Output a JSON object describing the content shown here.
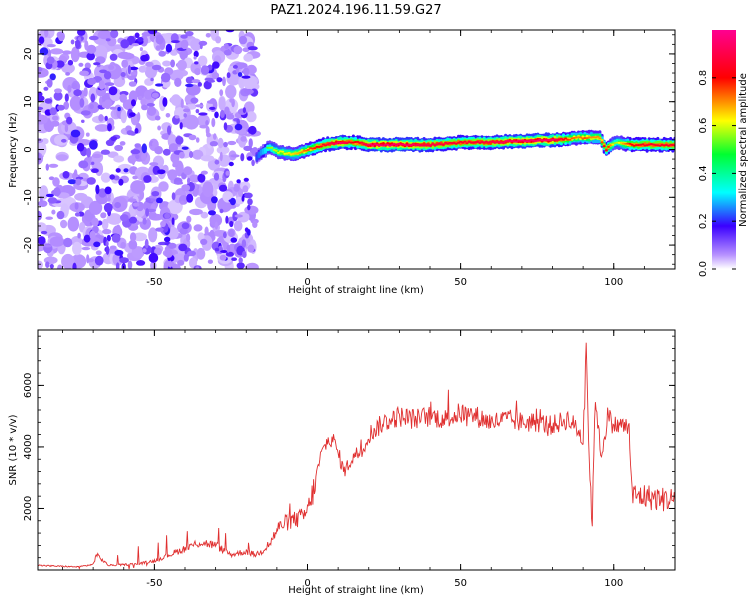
{
  "title": "PAZ1.2024.196.11.59.G27",
  "chart_data": [
    {
      "type": "heatmap",
      "xlabel": "Height of straight line (km)",
      "ylabel": "Frequency (Hz)",
      "xlim": [
        -88,
        120
      ],
      "ylim": [
        -25,
        25
      ],
      "x_ticks": [
        -50,
        0,
        50,
        100
      ],
      "y_ticks": [
        -20,
        -10,
        0,
        10,
        20
      ],
      "colorbar": {
        "label": "Normalized spectral amplitude",
        "range": [
          0.0,
          1.0
        ],
        "ticks": [
          0.0,
          0.2,
          0.4,
          0.6,
          0.8
        ],
        "tick_labels": [
          "0.0",
          "0.2",
          "0.4",
          "0.6",
          "0.8"
        ],
        "colors": [
          "#ffffff",
          "#a070ff",
          "#0000ff",
          "#00ffff",
          "#00ff00",
          "#ffff00",
          "#ff0000",
          "#ff00a0"
        ]
      },
      "noise_region_x": [
        -88,
        -17
      ],
      "ridge": {
        "x": [
          -17,
          -13,
          -10,
          -5,
          0,
          5,
          10,
          15,
          20,
          30,
          40,
          50,
          60,
          70,
          80,
          85,
          88,
          90,
          92,
          95,
          97,
          100,
          105,
          110,
          120
        ],
        "frequency_hz": [
          -1.5,
          0.5,
          -0.5,
          -1.0,
          0.0,
          1.0,
          1.5,
          1.5,
          1.0,
          1.0,
          1.0,
          1.5,
          1.5,
          1.8,
          2.0,
          2.2,
          2.5,
          2.5,
          2.5,
          2.5,
          0.0,
          1.5,
          1.0,
          1.0,
          1.0
        ],
        "amplitude": [
          0.35,
          0.55,
          0.6,
          0.65,
          0.75,
          0.85,
          0.95,
          0.8,
          0.95,
          0.95,
          0.9,
          0.85,
          0.9,
          0.95,
          0.95,
          0.75,
          0.7,
          0.75,
          0.7,
          0.7,
          0.85,
          0.55,
          0.8,
          0.85,
          0.85
        ]
      }
    },
    {
      "type": "line",
      "xlabel": "Height of straight line (km)",
      "ylabel": "SNR (10 * v/v)",
      "xlim": [
        -88,
        120
      ],
      "ylim": [
        0,
        7800
      ],
      "x_ticks": [
        -50,
        0,
        50,
        100
      ],
      "y_ticks": [
        2000,
        4000,
        6000
      ],
      "color": "#e03030",
      "x": [
        -88,
        -80,
        -75,
        -70,
        -69,
        -65,
        -55,
        -50,
        -45,
        -40,
        -35,
        -30,
        -25,
        -20,
        -17,
        -15,
        -12,
        -10,
        -8,
        -5,
        -2,
        0,
        2,
        4,
        6,
        8,
        10,
        12,
        15,
        18,
        20,
        25,
        30,
        35,
        40,
        45,
        50,
        55,
        60,
        65,
        70,
        75,
        80,
        85,
        88,
        90,
        91,
        92,
        93,
        94,
        95,
        96,
        98,
        100,
        103,
        105,
        106,
        110,
        115,
        120
      ],
      "y": [
        150,
        120,
        100,
        180,
        500,
        150,
        200,
        300,
        500,
        700,
        900,
        800,
        500,
        600,
        500,
        600,
        900,
        1300,
        1500,
        1600,
        1700,
        1900,
        2600,
        3600,
        4100,
        4300,
        3800,
        3200,
        3700,
        3900,
        4400,
        4800,
        5000,
        4900,
        5000,
        4900,
        5100,
        5000,
        4800,
        4900,
        4800,
        4800,
        4700,
        4900,
        4600,
        4200,
        7500,
        3500,
        1500,
        5800,
        4500,
        3700,
        5000,
        4700,
        4700,
        4600,
        2400,
        2400,
        2300,
        2300
      ]
    }
  ]
}
